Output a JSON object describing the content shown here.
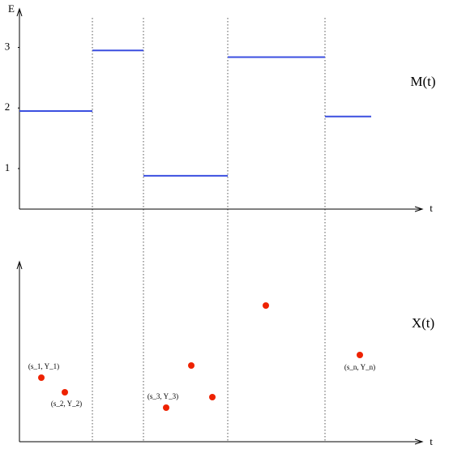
{
  "top_panel": {
    "y_axis_label": "E",
    "x_axis_label": "t",
    "series_label": "M(t)",
    "ylim": [
      0.33,
      3.65
    ],
    "yticks": [
      1,
      2,
      3
    ],
    "levels": [
      1.95,
      2.95,
      0.88,
      2.84,
      1.86
    ]
  },
  "bottom_panel": {
    "x_axis_label": "t",
    "series_label": "X(t)",
    "point_labels": [
      "(s_1, Y_1)",
      "(s_2, Y_2)",
      "(s_3, Y_3)",
      "(s_n, Y_n)"
    ]
  }
}
